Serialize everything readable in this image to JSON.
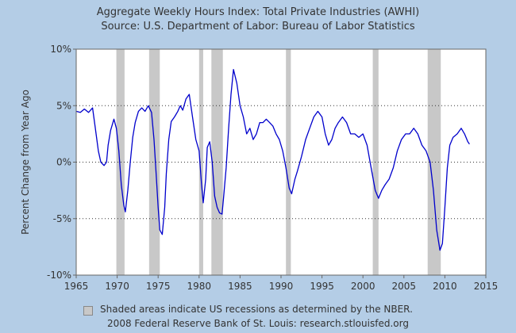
{
  "chart_data": {
    "type": "line",
    "title": "Aggregate Weekly Hours Index:  Total Private Industries (AWHI)",
    "subtitle": "Source: U.S. Department of Labor: Bureau of Labor Statistics",
    "xlabel": "",
    "ylabel": "Percent Change from Year Ago",
    "xlim": [
      1965,
      2015
    ],
    "ylim": [
      -10,
      10
    ],
    "x_ticks": [
      "1965",
      "1970",
      "1975",
      "1980",
      "1985",
      "1990",
      "1995",
      "2000",
      "2005",
      "2010",
      "2015"
    ],
    "y_ticks": [
      "10%",
      "5%",
      "0%",
      "-5%",
      "-10%"
    ],
    "grid": "horizontal dotted",
    "recessions": [
      [
        1969.9,
        1970.9
      ],
      [
        1973.9,
        1975.2
      ],
      [
        1980.0,
        1980.5
      ],
      [
        1981.5,
        1982.9
      ],
      [
        1990.6,
        1991.2
      ],
      [
        2001.2,
        2001.9
      ],
      [
        2007.9,
        2009.5
      ]
    ],
    "series": [
      {
        "color": "#0000cc",
        "points": [
          [
            1965.0,
            4.5
          ],
          [
            1965.5,
            4.4
          ],
          [
            1966.0,
            4.7
          ],
          [
            1966.5,
            4.4
          ],
          [
            1967.0,
            4.8
          ],
          [
            1967.3,
            3.2
          ],
          [
            1967.7,
            1.0
          ],
          [
            1968.0,
            0.0
          ],
          [
            1968.4,
            -0.3
          ],
          [
            1968.7,
            0.0
          ],
          [
            1968.9,
            1.5
          ],
          [
            1969.2,
            2.8
          ],
          [
            1969.6,
            3.8
          ],
          [
            1969.9,
            3.0
          ],
          [
            1970.2,
            1.0
          ],
          [
            1970.5,
            -2.0
          ],
          [
            1970.8,
            -3.8
          ],
          [
            1971.0,
            -4.4
          ],
          [
            1971.3,
            -2.5
          ],
          [
            1971.6,
            0.0
          ],
          [
            1971.9,
            2.2
          ],
          [
            1972.2,
            3.5
          ],
          [
            1972.6,
            4.5
          ],
          [
            1973.0,
            4.8
          ],
          [
            1973.4,
            4.5
          ],
          [
            1973.8,
            5.0
          ],
          [
            1974.2,
            4.4
          ],
          [
            1974.5,
            2.0
          ],
          [
            1974.8,
            -1.5
          ],
          [
            1975.0,
            -4.0
          ],
          [
            1975.2,
            -6.0
          ],
          [
            1975.5,
            -6.4
          ],
          [
            1975.8,
            -4.0
          ],
          [
            1976.0,
            -1.0
          ],
          [
            1976.3,
            2.0
          ],
          [
            1976.6,
            3.6
          ],
          [
            1977.0,
            4.0
          ],
          [
            1977.4,
            4.5
          ],
          [
            1977.7,
            5.0
          ],
          [
            1978.0,
            4.6
          ],
          [
            1978.4,
            5.6
          ],
          [
            1978.8,
            6.0
          ],
          [
            1979.2,
            4.0
          ],
          [
            1979.6,
            2.0
          ],
          [
            1980.0,
            1.0
          ],
          [
            1980.3,
            -2.0
          ],
          [
            1980.5,
            -3.6
          ],
          [
            1980.8,
            -1.5
          ],
          [
            1981.0,
            1.3
          ],
          [
            1981.3,
            1.8
          ],
          [
            1981.6,
            0.0
          ],
          [
            1981.9,
            -3.0
          ],
          [
            1982.2,
            -4.0
          ],
          [
            1982.5,
            -4.5
          ],
          [
            1982.8,
            -4.6
          ],
          [
            1983.0,
            -3.0
          ],
          [
            1983.3,
            -0.5
          ],
          [
            1983.6,
            3.0
          ],
          [
            1983.9,
            6.0
          ],
          [
            1984.2,
            8.2
          ],
          [
            1984.6,
            7.0
          ],
          [
            1985.0,
            5.0
          ],
          [
            1985.4,
            4.0
          ],
          [
            1985.8,
            2.5
          ],
          [
            1986.2,
            3.0
          ],
          [
            1986.6,
            2.0
          ],
          [
            1987.0,
            2.5
          ],
          [
            1987.4,
            3.5
          ],
          [
            1987.8,
            3.5
          ],
          [
            1988.2,
            3.8
          ],
          [
            1988.6,
            3.5
          ],
          [
            1989.0,
            3.2
          ],
          [
            1989.4,
            2.5
          ],
          [
            1989.8,
            2.0
          ],
          [
            1990.2,
            1.0
          ],
          [
            1990.6,
            -0.5
          ],
          [
            1991.0,
            -2.3
          ],
          [
            1991.3,
            -2.8
          ],
          [
            1991.7,
            -1.5
          ],
          [
            1992.0,
            -0.8
          ],
          [
            1992.5,
            0.5
          ],
          [
            1993.0,
            2.0
          ],
          [
            1993.5,
            3.0
          ],
          [
            1994.0,
            4.0
          ],
          [
            1994.5,
            4.5
          ],
          [
            1995.0,
            4.0
          ],
          [
            1995.4,
            2.5
          ],
          [
            1995.8,
            1.5
          ],
          [
            1996.2,
            2.0
          ],
          [
            1996.6,
            3.0
          ],
          [
            1997.0,
            3.5
          ],
          [
            1997.5,
            4.0
          ],
          [
            1998.0,
            3.5
          ],
          [
            1998.5,
            2.5
          ],
          [
            1999.0,
            2.5
          ],
          [
            1999.5,
            2.2
          ],
          [
            2000.0,
            2.5
          ],
          [
            2000.5,
            1.5
          ],
          [
            2001.0,
            -0.5
          ],
          [
            2001.5,
            -2.5
          ],
          [
            2001.9,
            -3.2
          ],
          [
            2002.3,
            -2.5
          ],
          [
            2002.7,
            -2.0
          ],
          [
            2003.2,
            -1.5
          ],
          [
            2003.7,
            -0.5
          ],
          [
            2004.2,
            1.0
          ],
          [
            2004.7,
            2.0
          ],
          [
            2005.2,
            2.5
          ],
          [
            2005.7,
            2.5
          ],
          [
            2006.2,
            3.0
          ],
          [
            2006.7,
            2.5
          ],
          [
            2007.2,
            1.5
          ],
          [
            2007.7,
            1.0
          ],
          [
            2008.2,
            0.0
          ],
          [
            2008.6,
            -2.5
          ],
          [
            2009.0,
            -6.0
          ],
          [
            2009.4,
            -7.8
          ],
          [
            2009.7,
            -7.2
          ],
          [
            2010.0,
            -4.0
          ],
          [
            2010.3,
            -0.5
          ],
          [
            2010.6,
            1.5
          ],
          [
            2011.0,
            2.2
          ],
          [
            2011.5,
            2.5
          ],
          [
            2012.0,
            3.0
          ],
          [
            2012.4,
            2.5
          ],
          [
            2012.8,
            1.8
          ],
          [
            2013.0,
            1.6
          ]
        ]
      }
    ]
  },
  "footer": {
    "legend_text": "Shaded areas indicate US recessions as determined by the NBER.",
    "credit": "2008 Federal Reserve Bank of St. Louis: research.stlouisfed.org"
  }
}
